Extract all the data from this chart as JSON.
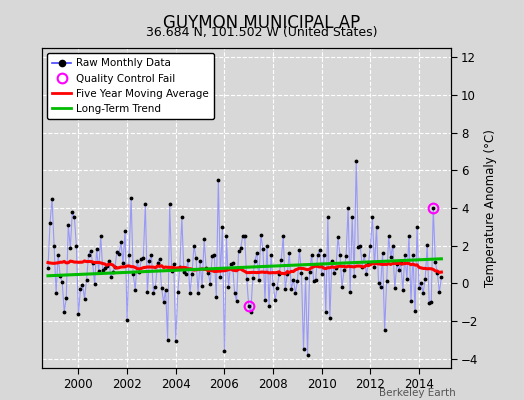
{
  "title": "GUYMON MUNICIPAL AP",
  "subtitle": "36.684 N, 101.502 W (United States)",
  "ylabel": "Temperature Anomaly (°C)",
  "credit": "Berkeley Earth",
  "xlim": [
    1998.5,
    2015.3
  ],
  "ylim": [
    -4.5,
    12.5
  ],
  "yticks": [
    -4,
    -2,
    0,
    2,
    4,
    6,
    8,
    10,
    12
  ],
  "xticks": [
    2000,
    2002,
    2004,
    2006,
    2008,
    2010,
    2012,
    2014
  ],
  "bg_color": "#d8d8d8",
  "line_color": "#4444ff",
  "ma_color": "#ff0000",
  "trend_color": "#00bb00",
  "qc_color": "#ff00ff",
  "title_fontsize": 12,
  "subtitle_fontsize": 9,
  "seed": 17
}
